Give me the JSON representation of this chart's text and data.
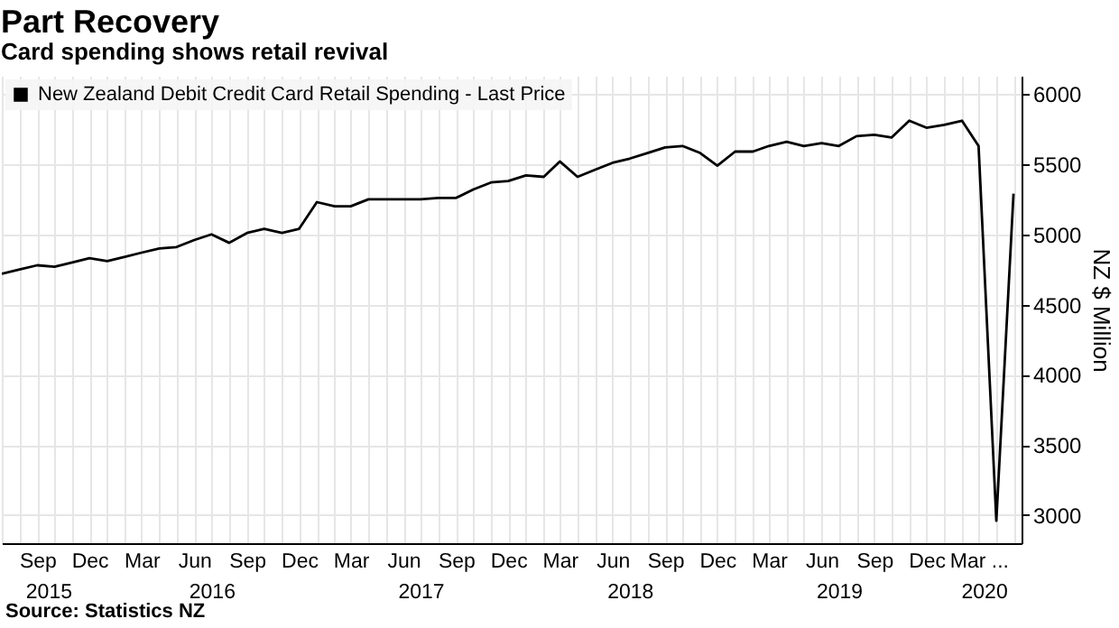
{
  "chart_data": {
    "type": "line",
    "title": "Part Recovery",
    "subtitle": "Card spending shows retail revival",
    "ylabel": "NZ $ Million",
    "annotations": [
      "Source: Statistics NZ"
    ],
    "x": [
      "2015-07",
      "2015-08",
      "2015-09",
      "2015-10",
      "2015-11",
      "2015-12",
      "2016-01",
      "2016-02",
      "2016-03",
      "2016-04",
      "2016-05",
      "2016-06",
      "2016-07",
      "2016-08",
      "2016-09",
      "2016-10",
      "2016-11",
      "2016-12",
      "2017-01",
      "2017-02",
      "2017-03",
      "2017-04",
      "2017-05",
      "2017-06",
      "2017-07",
      "2017-08",
      "2017-09",
      "2017-10",
      "2017-11",
      "2017-12",
      "2018-01",
      "2018-02",
      "2018-03",
      "2018-04",
      "2018-05",
      "2018-06",
      "2018-07",
      "2018-08",
      "2018-09",
      "2018-10",
      "2018-11",
      "2018-12",
      "2019-01",
      "2019-02",
      "2019-03",
      "2019-04",
      "2019-05",
      "2019-06",
      "2019-07",
      "2019-08",
      "2019-09",
      "2019-10",
      "2019-11",
      "2019-12",
      "2020-01",
      "2020-02",
      "2020-03",
      "2020-04",
      "2020-05"
    ],
    "series": [
      {
        "name": "New Zealand Debit Credit Card Retail Spending - Last Price",
        "color": "#000000",
        "values": [
          4720,
          4750,
          4780,
          4770,
          4800,
          4830,
          4810,
          4840,
          4870,
          4900,
          4910,
          4960,
          5000,
          4940,
          5010,
          5040,
          5010,
          5040,
          5230,
          5200,
          5200,
          5250,
          5250,
          5250,
          5250,
          5260,
          5260,
          5320,
          5370,
          5380,
          5420,
          5410,
          5520,
          5410,
          5460,
          5510,
          5540,
          5580,
          5620,
          5630,
          5580,
          5490,
          5590,
          5590,
          5630,
          5660,
          5630,
          5650,
          5630,
          5700,
          5710,
          5690,
          5810,
          5760,
          5780,
          5810,
          5630,
          2960,
          5290
        ]
      }
    ],
    "xlim": [
      "2015-07",
      "2020-05-15"
    ],
    "xticks": [
      {
        "value": "2015-07",
        "label": null
      },
      {
        "value": "2015-08",
        "label": null
      },
      {
        "value": "2015-09",
        "label": "Sep"
      },
      {
        "value": "2015-10",
        "label": null
      },
      {
        "value": "2015-11",
        "label": null
      },
      {
        "value": "2015-12",
        "label": "Dec"
      },
      {
        "value": "2016-01",
        "label": null
      },
      {
        "value": "2016-02",
        "label": null
      },
      {
        "value": "2016-03",
        "label": "Mar"
      },
      {
        "value": "2016-04",
        "label": null
      },
      {
        "value": "2016-05",
        "label": null
      },
      {
        "value": "2016-06",
        "label": "Jun"
      },
      {
        "value": "2016-07",
        "label": null
      },
      {
        "value": "2016-08",
        "label": null
      },
      {
        "value": "2016-09",
        "label": "Sep"
      },
      {
        "value": "2016-10",
        "label": null
      },
      {
        "value": "2016-11",
        "label": null
      },
      {
        "value": "2016-12",
        "label": "Dec"
      },
      {
        "value": "2017-01",
        "label": null
      },
      {
        "value": "2017-02",
        "label": null
      },
      {
        "value": "2017-03",
        "label": "Mar"
      },
      {
        "value": "2017-04",
        "label": null
      },
      {
        "value": "2017-05",
        "label": null
      },
      {
        "value": "2017-06",
        "label": "Jun"
      },
      {
        "value": "2017-07",
        "label": null
      },
      {
        "value": "2017-08",
        "label": null
      },
      {
        "value": "2017-09",
        "label": "Sep"
      },
      {
        "value": "2017-10",
        "label": null
      },
      {
        "value": "2017-11",
        "label": null
      },
      {
        "value": "2017-12",
        "label": "Dec"
      },
      {
        "value": "2018-01",
        "label": null
      },
      {
        "value": "2018-02",
        "label": null
      },
      {
        "value": "2018-03",
        "label": "Mar"
      },
      {
        "value": "2018-04",
        "label": null
      },
      {
        "value": "2018-05",
        "label": null
      },
      {
        "value": "2018-06",
        "label": "Jun"
      },
      {
        "value": "2018-07",
        "label": null
      },
      {
        "value": "2018-08",
        "label": null
      },
      {
        "value": "2018-09",
        "label": "Sep"
      },
      {
        "value": "2018-10",
        "label": null
      },
      {
        "value": "2018-11",
        "label": null
      },
      {
        "value": "2018-12",
        "label": "Dec"
      },
      {
        "value": "2019-01",
        "label": null
      },
      {
        "value": "2019-02",
        "label": null
      },
      {
        "value": "2019-03",
        "label": "Mar"
      },
      {
        "value": "2019-04",
        "label": null
      },
      {
        "value": "2019-05",
        "label": null
      },
      {
        "value": "2019-06",
        "label": "Jun"
      },
      {
        "value": "2019-07",
        "label": null
      },
      {
        "value": "2019-08",
        "label": null
      },
      {
        "value": "2019-09",
        "label": "Sep"
      },
      {
        "value": "2019-10",
        "label": null
      },
      {
        "value": "2019-11",
        "label": null
      },
      {
        "value": "2019-12",
        "label": "Dec"
      },
      {
        "value": "2020-01",
        "label": null
      },
      {
        "value": "2020-02",
        "label": null
      },
      {
        "value": "2020-03",
        "label": "Mar ..."
      },
      {
        "value": "2020-04",
        "label": null
      },
      {
        "value": "2020-05",
        "label": null
      }
    ],
    "x2lim": [
      "2015-07",
      "2020-05-15"
    ],
    "x2ticks": [
      {
        "value": "2015-09-20",
        "label": "2015"
      },
      {
        "value": "2016-07-01",
        "label": "2016"
      },
      {
        "value": "2017-07-01",
        "label": "2017"
      },
      {
        "value": "2018-07-01",
        "label": "2018"
      },
      {
        "value": "2019-07-01",
        "label": "2019"
      },
      {
        "value": "2020-03-10",
        "label": "2020"
      }
    ],
    "ylim": [
      2800,
      6130
    ],
    "yticks": [
      3000,
      3500,
      4000,
      4500,
      5000,
      5500,
      6000
    ],
    "grid": true,
    "legend": "top left"
  }
}
